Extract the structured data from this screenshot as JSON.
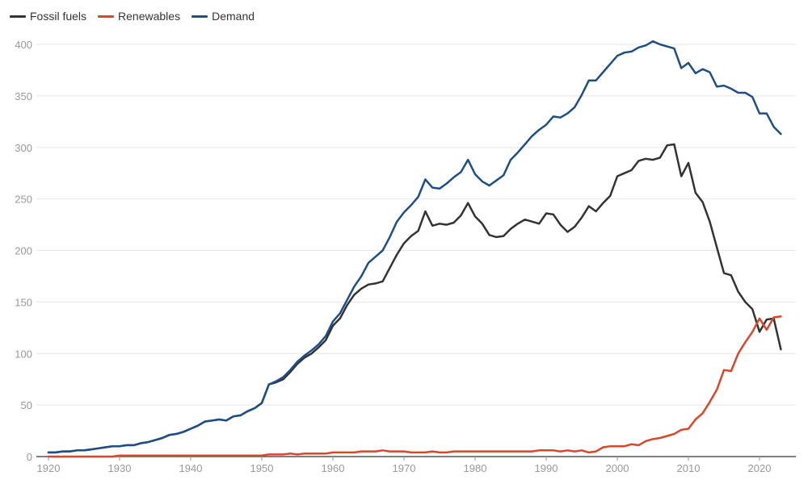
{
  "chart_data": {
    "type": "line",
    "title": "",
    "xlabel": "",
    "ylabel": "",
    "xlim": [
      1920,
      2023
    ],
    "ylim": [
      0,
      400
    ],
    "grid": true,
    "legend_placement": "top-left",
    "x_ticks": [
      "1920",
      "1930",
      "1940",
      "1950",
      "1960",
      "1970",
      "1980",
      "1990",
      "2000",
      "2010",
      "2020"
    ],
    "y_ticks": [
      "0",
      "50",
      "100",
      "150",
      "200",
      "250",
      "300",
      "350",
      "400"
    ],
    "x": [
      1920,
      1921,
      1922,
      1923,
      1924,
      1925,
      1926,
      1927,
      1928,
      1929,
      1930,
      1931,
      1932,
      1933,
      1934,
      1935,
      1936,
      1937,
      1938,
      1939,
      1940,
      1941,
      1942,
      1943,
      1944,
      1945,
      1946,
      1947,
      1948,
      1949,
      1950,
      1951,
      1952,
      1953,
      1954,
      1955,
      1956,
      1957,
      1958,
      1959,
      1960,
      1961,
      1962,
      1963,
      1964,
      1965,
      1966,
      1967,
      1968,
      1969,
      1970,
      1971,
      1972,
      1973,
      1974,
      1975,
      1976,
      1977,
      1978,
      1979,
      1980,
      1981,
      1982,
      1983,
      1984,
      1985,
      1986,
      1987,
      1988,
      1989,
      1990,
      1991,
      1992,
      1993,
      1994,
      1995,
      1996,
      1997,
      1998,
      1999,
      2000,
      2001,
      2002,
      2003,
      2004,
      2005,
      2006,
      2007,
      2008,
      2009,
      2010,
      2011,
      2012,
      2013,
      2014,
      2015,
      2016,
      2017,
      2018,
      2019,
      2020,
      2021,
      2022,
      2023
    ],
    "series": [
      {
        "name": "Fossil fuels",
        "color": "#333333",
        "values": [
          4,
          4,
          5,
          5,
          6,
          6,
          7,
          8,
          9,
          10,
          10,
          11,
          11,
          13,
          14,
          16,
          18,
          21,
          22,
          24,
          27,
          30,
          34,
          35,
          36,
          35,
          39,
          40,
          44,
          47,
          52,
          70,
          72,
          75,
          82,
          90,
          96,
          100,
          106,
          113,
          127,
          134,
          147,
          157,
          163,
          167,
          168,
          170,
          183,
          196,
          207,
          214,
          219,
          238,
          224,
          226,
          225,
          227,
          234,
          246,
          233,
          226,
          215,
          213,
          214,
          221,
          226,
          230,
          228,
          226,
          236,
          235,
          225,
          218,
          223,
          232,
          243,
          238,
          246,
          253,
          272,
          275,
          278,
          287,
          289,
          288,
          290,
          302,
          303,
          272,
          285,
          256,
          247,
          228,
          203,
          178,
          176,
          160,
          150,
          143,
          121,
          133,
          134,
          104
        ]
      },
      {
        "name": "Renewables",
        "color": "#d9472b",
        "values": [
          0,
          0,
          0,
          0,
          0,
          0,
          0,
          0,
          0,
          0,
          1,
          1,
          1,
          1,
          1,
          1,
          1,
          1,
          1,
          1,
          1,
          1,
          1,
          1,
          1,
          1,
          1,
          1,
          1,
          1,
          1,
          2,
          2,
          2,
          3,
          2,
          3,
          3,
          3,
          3,
          4,
          4,
          4,
          4,
          5,
          5,
          5,
          6,
          5,
          5,
          5,
          4,
          4,
          4,
          5,
          4,
          4,
          5,
          5,
          5,
          5,
          5,
          5,
          5,
          5,
          5,
          5,
          5,
          5,
          6,
          6,
          6,
          5,
          6,
          5,
          6,
          4,
          5,
          9,
          10,
          10,
          10,
          12,
          11,
          15,
          17,
          18,
          20,
          22,
          26,
          27,
          36,
          42,
          53,
          65,
          84,
          83,
          100,
          111,
          121,
          134,
          123,
          135,
          136
        ]
      },
      {
        "name": "Demand",
        "color": "#1f4e84",
        "values": [
          4,
          4,
          5,
          5,
          6,
          6,
          7,
          8,
          9,
          10,
          10,
          11,
          11,
          13,
          14,
          16,
          18,
          21,
          22,
          24,
          27,
          30,
          34,
          35,
          36,
          35,
          39,
          40,
          44,
          47,
          52,
          70,
          73,
          77,
          84,
          92,
          98,
          103,
          109,
          117,
          131,
          139,
          152,
          165,
          175,
          188,
          194,
          200,
          213,
          228,
          237,
          244,
          252,
          269,
          261,
          260,
          265,
          271,
          276,
          288,
          274,
          267,
          263,
          268,
          273,
          288,
          295,
          303,
          311,
          317,
          322,
          330,
          329,
          333,
          339,
          351,
          365,
          365,
          373,
          381,
          389,
          392,
          393,
          397,
          399,
          403,
          400,
          398,
          396,
          377,
          382,
          372,
          376,
          373,
          359,
          360,
          357,
          353,
          353,
          349,
          333,
          333,
          320,
          313
        ]
      }
    ]
  }
}
